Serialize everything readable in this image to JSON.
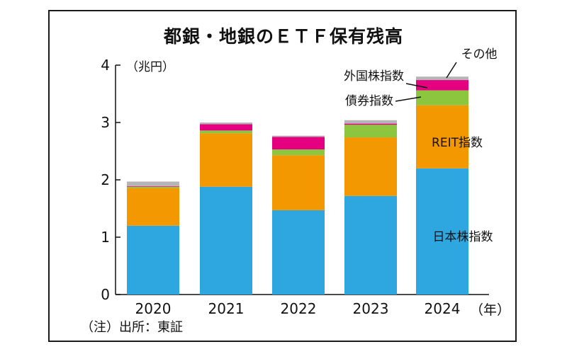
{
  "chart_data": {
    "type": "bar",
    "stacked": true,
    "title": "都銀・地銀のＥＴＦ保有残高",
    "unit_label": "（兆円）",
    "x_unit_label": "（年）",
    "categories": [
      "2020",
      "2021",
      "2022",
      "2023",
      "2024"
    ],
    "ylim": [
      0,
      4
    ],
    "yticks": [
      "0",
      "1",
      "2",
      "3",
      "4"
    ],
    "grid": false,
    "legend": "inline labels at right",
    "series": [
      {
        "name": "日本株指数",
        "color": "#2ea6e0",
        "values": [
          1.2,
          1.88,
          1.47,
          1.72,
          2.2
        ]
      },
      {
        "name": "REIT指数",
        "color": "#f39800",
        "values": [
          0.66,
          0.93,
          0.96,
          1.02,
          1.1
        ]
      },
      {
        "name": "債券指数",
        "color": "#8cc63f",
        "values": [
          0.02,
          0.05,
          0.1,
          0.22,
          0.26
        ]
      },
      {
        "name": "外国株指数",
        "color": "#e4007f",
        "values": [
          0.01,
          0.11,
          0.22,
          0.02,
          0.18
        ]
      },
      {
        "name": "その他",
        "color": "#b5b5b5",
        "values": [
          0.08,
          0.03,
          0.02,
          0.06,
          0.06
        ]
      }
    ],
    "source": "（注）出所：東証"
  }
}
